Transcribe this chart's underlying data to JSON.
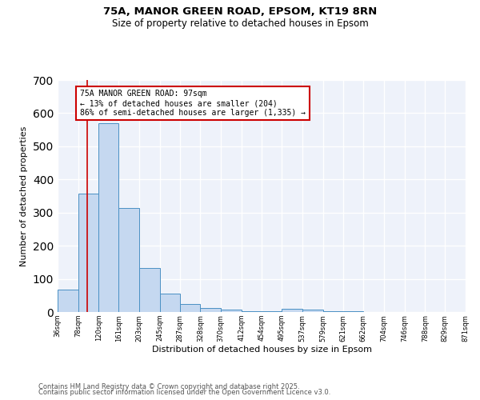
{
  "title1": "75A, MANOR GREEN ROAD, EPSOM, KT19 8RN",
  "title2": "Size of property relative to detached houses in Epsom",
  "xlabel": "Distribution of detached houses by size in Epsom",
  "ylabel": "Number of detached properties",
  "bin_edges": [
    36,
    78,
    120,
    161,
    203,
    245,
    287,
    328,
    370,
    412,
    454,
    495,
    537,
    579,
    621,
    662,
    704,
    746,
    788,
    829,
    871
  ],
  "bar_heights": [
    67,
    358,
    570,
    315,
    133,
    55,
    25,
    13,
    7,
    2,
    2,
    10,
    7,
    3,
    2,
    1,
    1,
    1,
    0,
    0
  ],
  "bar_facecolor": "#c5d8f0",
  "bar_edgecolor": "#4a90c4",
  "vline_x": 97,
  "vline_color": "#cc0000",
  "annotation_text": "75A MANOR GREEN ROAD: 97sqm\n← 13% of detached houses are smaller (204)\n86% of semi-detached houses are larger (1,335) →",
  "annotation_box_color": "#cc0000",
  "background_color": "#eef2fa",
  "grid_color": "#ffffff",
  "ylim": [
    0,
    700
  ],
  "xlim": [
    36,
    871
  ],
  "tick_labels": [
    "36sqm",
    "78sqm",
    "120sqm",
    "161sqm",
    "203sqm",
    "245sqm",
    "287sqm",
    "328sqm",
    "370sqm",
    "412sqm",
    "454sqm",
    "495sqm",
    "537sqm",
    "579sqm",
    "621sqm",
    "662sqm",
    "704sqm",
    "746sqm",
    "788sqm",
    "829sqm",
    "871sqm"
  ],
  "footer1": "Contains HM Land Registry data © Crown copyright and database right 2025.",
  "footer2": "Contains public sector information licensed under the Open Government Licence v3.0."
}
